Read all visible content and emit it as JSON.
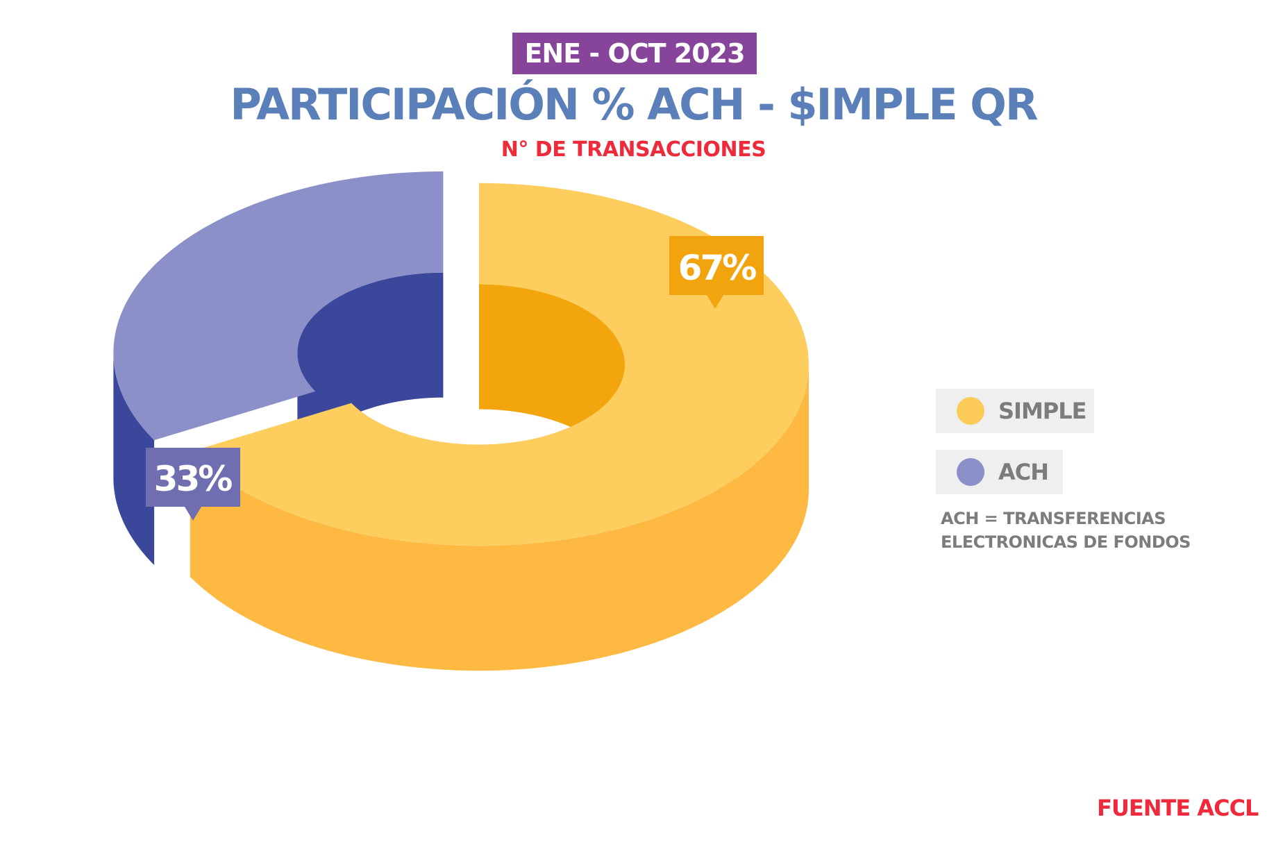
{
  "header": {
    "period": "ENE - OCT 2023",
    "title": "PARTICIPACIÓN % ACH - $IMPLE QR",
    "subtitle": "N° DE TRANSACCIONES"
  },
  "chart_data": {
    "type": "pie",
    "style": "3d-donut",
    "title": "PARTICIPACIÓN % ACH - $IMPLE QR",
    "subtitle": "N° DE TRANSACCIONES",
    "unit": "%",
    "categories": [
      "SIMPLE",
      "ACH"
    ],
    "values": [
      67,
      33
    ],
    "data_labels": [
      "67%",
      "33%"
    ],
    "colors": {
      "SIMPLE": {
        "top": "#fdce5e",
        "side": "#fdb942",
        "inner": "#f2a50d",
        "cut": "#fdb811",
        "label_bg": "#f2a40e"
      },
      "ACH": {
        "top": "#8b90c8",
        "side": "#3b479b",
        "inner": "#3b479b",
        "label_bg": "#6e6eb1"
      }
    },
    "legend_position": "right",
    "grid": false
  },
  "legend": {
    "items": [
      {
        "label": "SIMPLE",
        "color": "#fdcb57"
      },
      {
        "label": "ACH",
        "color": "#8b90c8"
      }
    ],
    "note_line1": "ACH = TRANSFERENCIAS",
    "note_line2": "ELECTRONICAS DE FONDOS"
  },
  "footer": {
    "source": "FUENTE ACCL"
  }
}
